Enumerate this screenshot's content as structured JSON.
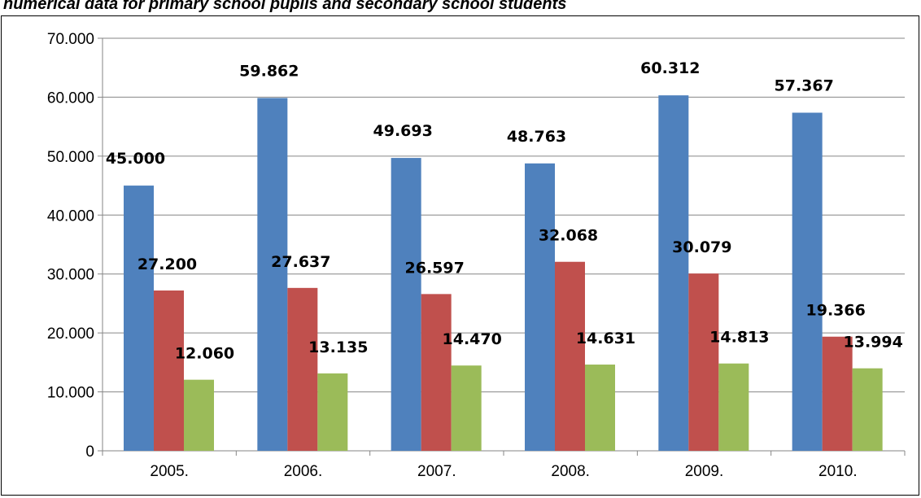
{
  "chart_data": {
    "type": "bar",
    "title": "numerical data for primary school pupils and secondary school students",
    "xlabel": "",
    "ylabel": "",
    "categories": [
      "2005.",
      "2006.",
      "2007.",
      "2008.",
      "2009.",
      "2010."
    ],
    "series": [
      {
        "values": [
          45000,
          59862,
          49693,
          48763,
          60312,
          57367
        ],
        "labels": [
          "45.000",
          "59.862",
          "49.693",
          "48.763",
          "60.312",
          "57.367"
        ],
        "color": "#4F81BD"
      },
      {
        "values": [
          27200,
          27637,
          26597,
          32068,
          30079,
          19366
        ],
        "labels": [
          "27.200",
          "27.637",
          "26.597",
          "32.068",
          "30.079",
          "19.366"
        ],
        "color": "#C0504D"
      },
      {
        "values": [
          12060,
          13135,
          14470,
          14631,
          14813,
          13994
        ],
        "labels": [
          "12.060",
          "13.135",
          "14.470",
          "14.631",
          "14.813",
          "13.994"
        ],
        "color": "#9BBB59"
      }
    ],
    "ylim": [
      0,
      70000
    ],
    "yticks": [
      0,
      10000,
      20000,
      30000,
      40000,
      50000,
      60000,
      70000
    ],
    "ytick_labels": [
      "0",
      "10.000",
      "20.000",
      "30.000",
      "40.000",
      "50.000",
      "60.000",
      "70.000"
    ],
    "grid": true,
    "legend": "none"
  }
}
